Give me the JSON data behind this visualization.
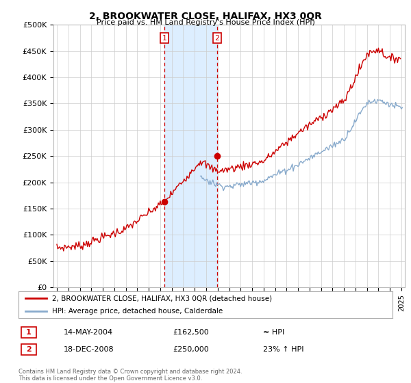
{
  "title": "2, BROOKWATER CLOSE, HALIFAX, HX3 0QR",
  "subtitle": "Price paid vs. HM Land Registry's House Price Index (HPI)",
  "ylabel_ticks": [
    "£0",
    "£50K",
    "£100K",
    "£150K",
    "£200K",
    "£250K",
    "£300K",
    "£350K",
    "£400K",
    "£450K",
    "£500K"
  ],
  "ytick_vals": [
    0,
    50000,
    100000,
    150000,
    200000,
    250000,
    300000,
    350000,
    400000,
    450000,
    500000
  ],
  "ylim": [
    0,
    500000
  ],
  "xlim_start": 1994.7,
  "xlim_end": 2025.3,
  "sale1_x": 2004.37,
  "sale1_y": 162500,
  "sale2_x": 2008.96,
  "sale2_y": 250000,
  "vline1_x": 2004.37,
  "vline2_x": 2008.96,
  "shade_color": "#ddeeff",
  "vline_color": "#cc0000",
  "marker_color": "#cc0000",
  "hpi_line_color": "#88aacc",
  "price_line_color": "#cc0000",
  "legend_label_price": "2, BROOKWATER CLOSE, HALIFAX, HX3 0QR (detached house)",
  "legend_label_hpi": "HPI: Average price, detached house, Calderdale",
  "table_row1": [
    "1",
    "14-MAY-2004",
    "£162,500",
    "≈ HPI"
  ],
  "table_row2": [
    "2",
    "18-DEC-2008",
    "£250,000",
    "23% ↑ HPI"
  ],
  "footer": "Contains HM Land Registry data © Crown copyright and database right 2024.\nThis data is licensed under the Open Government Licence v3.0.",
  "background_color": "#ffffff",
  "grid_color": "#cccccc"
}
